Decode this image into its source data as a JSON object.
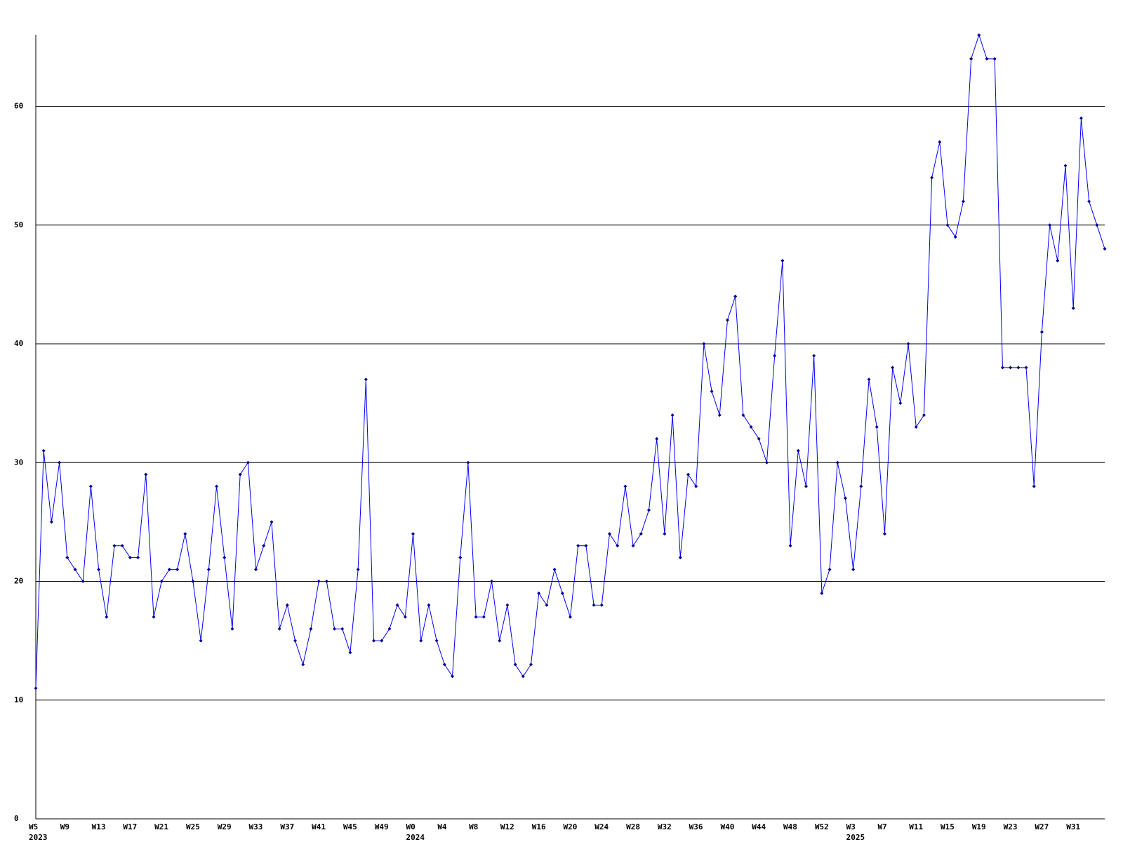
{
  "chart_data": {
    "type": "line",
    "categories": [
      "W5",
      null,
      null,
      null,
      "W9",
      null,
      null,
      null,
      "W13",
      null,
      null,
      null,
      "W17",
      null,
      null,
      null,
      "W21",
      null,
      null,
      null,
      "W25",
      null,
      null,
      null,
      "W29",
      null,
      null,
      null,
      "W33",
      null,
      null,
      null,
      "W37",
      null,
      null,
      null,
      "W41",
      null,
      null,
      null,
      "W45",
      null,
      null,
      null,
      "W49",
      null,
      null,
      null,
      "W0",
      null,
      null,
      null,
      "W4",
      null,
      null,
      null,
      "W8",
      null,
      null,
      null,
      "W12",
      null,
      null,
      null,
      "W16",
      null,
      null,
      null,
      "W20",
      null,
      null,
      null,
      "W24",
      null,
      null,
      null,
      "W28",
      null,
      null,
      null,
      "W32",
      null,
      null,
      null,
      "W36",
      null,
      null,
      null,
      "W40",
      null,
      null,
      null,
      "W44",
      null,
      null,
      null,
      "W48",
      null,
      null,
      null,
      "W52",
      null,
      null,
      null,
      "W3",
      null,
      null,
      null,
      "W7",
      null,
      null,
      null,
      "W11",
      null,
      null,
      null,
      "W15",
      null,
      null,
      null,
      "W19",
      null,
      null,
      null,
      "W23",
      null,
      null,
      null,
      "W27",
      null,
      null,
      null,
      "W31",
      null,
      null,
      null,
      null
    ],
    "years": [
      {
        "label": "2023",
        "category_index": 0
      },
      {
        "label": "2024",
        "category_index": 48
      },
      {
        "label": "2025",
        "category_index": 104
      }
    ],
    "series": [
      {
        "color": "#0000ff",
        "marker_color": "#00008b",
        "values": [
          11,
          31,
          25,
          30,
          22,
          21,
          20,
          28,
          21,
          17,
          23,
          23,
          22,
          22,
          29,
          17,
          20,
          21,
          21,
          24,
          20,
          15,
          21,
          28,
          22,
          16,
          29,
          30,
          21,
          23,
          25,
          16,
          18,
          15,
          13,
          16,
          20,
          20,
          16,
          16,
          14,
          21,
          37,
          15,
          15,
          16,
          18,
          17,
          24,
          15,
          18,
          15,
          13,
          12,
          22,
          30,
          17,
          17,
          20,
          15,
          18,
          13,
          12,
          13,
          19,
          18,
          21,
          19,
          17,
          23,
          23,
          18,
          18,
          24,
          23,
          28,
          23,
          24,
          26,
          32,
          24,
          34,
          22,
          29,
          28,
          40,
          36,
          34,
          42,
          44,
          34,
          33,
          32,
          30,
          39,
          47,
          23,
          31,
          28,
          39,
          19,
          21,
          30,
          27,
          21,
          28,
          37,
          33,
          24,
          38,
          35,
          40,
          33,
          34,
          54,
          57,
          50,
          49,
          52,
          64,
          66,
          64,
          64,
          38,
          38,
          38,
          38,
          28,
          41,
          50,
          47,
          55,
          43,
          59,
          52,
          50,
          48
        ]
      }
    ],
    "ylim": [
      0,
      66
    ],
    "yticks": [
      0,
      10,
      20,
      30,
      40,
      50,
      60
    ],
    "grid": true
  }
}
